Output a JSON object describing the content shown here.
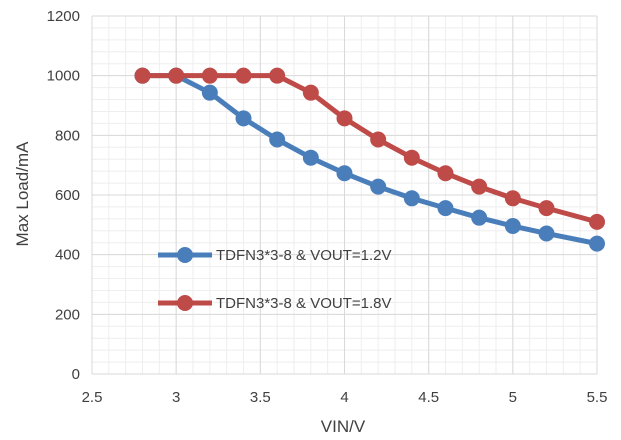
{
  "chart_data": {
    "type": "line",
    "title": "",
    "xlabel": "VIN/V",
    "ylabel": "Max Load/mA",
    "xlim": [
      2.5,
      5.5
    ],
    "ylim": [
      0,
      1200
    ],
    "x_ticks": [
      2.5,
      3,
      3.5,
      4,
      4.5,
      5,
      5.5
    ],
    "x_tick_labels": [
      "2.5",
      "3",
      "3.5",
      "4",
      "4.5",
      "5",
      "5.5"
    ],
    "y_ticks": [
      0,
      200,
      400,
      600,
      800,
      1000,
      1200
    ],
    "y_tick_labels": [
      "0",
      "200",
      "400",
      "600",
      "800",
      "1000",
      "1200"
    ],
    "grid": true,
    "minor_grid": true,
    "legend_position": "inside-left",
    "series": [
      {
        "name": "TDFN3*3-8 & VOUT=1.2V",
        "color": "#4a7ebb",
        "x": [
          2.8,
          3.0,
          3.2,
          3.4,
          3.6,
          3.8,
          4.0,
          4.2,
          4.4,
          4.6,
          4.8,
          5.0,
          5.2,
          5.5
        ],
        "y": [
          1000,
          1000,
          943,
          857,
          786,
          725,
          673,
          628,
          589,
          556,
          524,
          496,
          471,
          437
        ]
      },
      {
        "name": "TDFN3*3-8 & VOUT=1.8V",
        "color": "#be4b48",
        "x": [
          2.8,
          3.0,
          3.2,
          3.4,
          3.6,
          3.8,
          4.0,
          4.2,
          4.4,
          4.6,
          4.8,
          5.0,
          5.2,
          5.5
        ],
        "y": [
          1000,
          1000,
          1000,
          1000,
          1000,
          943,
          857,
          786,
          725,
          673,
          628,
          589,
          556,
          510
        ]
      }
    ]
  }
}
